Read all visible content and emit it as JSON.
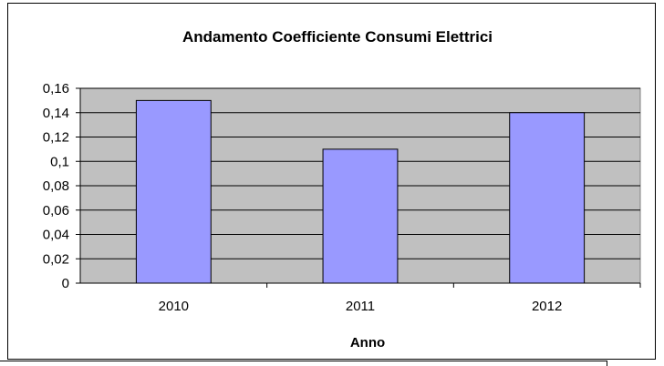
{
  "chart_data": {
    "type": "bar",
    "title": "Andamento Coefficiente Consumi Elettrici",
    "xlabel": "Anno",
    "ylabel": "",
    "categories": [
      "2010",
      "2011",
      "2012"
    ],
    "values": [
      0.15,
      0.11,
      0.14
    ],
    "ylim": [
      0,
      0.16
    ],
    "yticks": [
      "0",
      "0,02",
      "0,04",
      "0,06",
      "0,08",
      "0,1",
      "0,12",
      "0,14",
      "0,16"
    ],
    "grid": true,
    "legend": "none",
    "colors": {
      "bar_fill": "#9999ff",
      "plot_background": "#c0c0c0",
      "gridline": "#000000",
      "border": "#000000"
    }
  }
}
